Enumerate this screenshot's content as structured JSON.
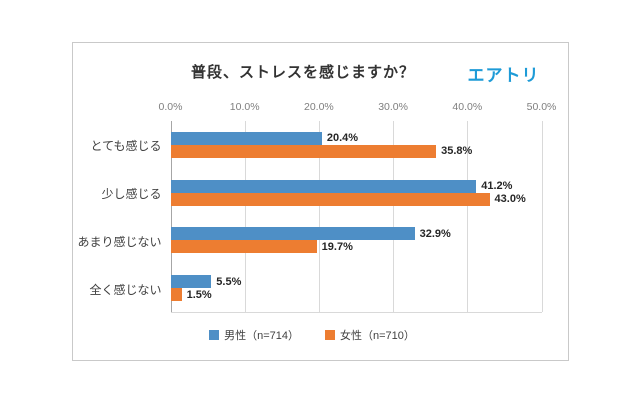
{
  "card": {
    "title": "普段、ストレスを感じますか？",
    "logo_text": "エアトリ",
    "logo_color": "#1e9bd7"
  },
  "chart_data": {
    "type": "bar",
    "orientation": "horizontal",
    "title": "普段、ストレスを感じますか？",
    "categories": [
      "とても感じる",
      "少し感じる",
      "あまり感じない",
      "全く感じない"
    ],
    "series": [
      {
        "key": "male",
        "name": "男性（n=714）",
        "color": "#4e8fc6",
        "values": [
          20.4,
          41.2,
          32.9,
          5.5
        ]
      },
      {
        "key": "female",
        "name": "女性（n=710）",
        "color": "#ed7d31",
        "values": [
          35.8,
          43.0,
          19.7,
          1.5
        ]
      }
    ],
    "x_ticks": [
      "0.0%",
      "10.0%",
      "20.0%",
      "30.0%",
      "40.0%",
      "50.0%"
    ],
    "xlim": [
      0,
      50
    ],
    "value_label_format": "percent_1dp",
    "grid": true,
    "legend_position": "bottom"
  }
}
